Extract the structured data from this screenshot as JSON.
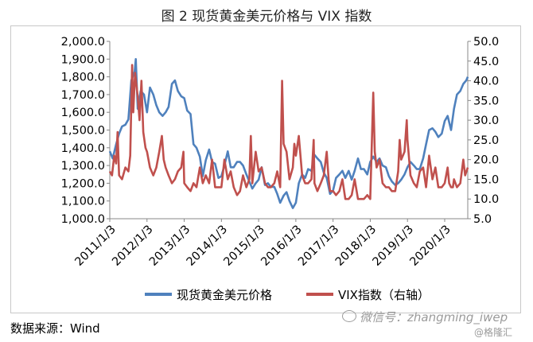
{
  "chart_data": {
    "type": "line",
    "title": "图 2    现货黄金美元价格与 VIX 指数",
    "xlabel": "",
    "ylabel": "",
    "y_left": {
      "range": [
        1000,
        2000
      ],
      "ticks": [
        "1,000.0",
        "1,100.0",
        "1,200.0",
        "1,300.0",
        "1,400.0",
        "1,500.0",
        "1,600.0",
        "1,700.0",
        "1,800.0",
        "1,900.0",
        "2,000.0"
      ]
    },
    "y_right": {
      "range": [
        5,
        50
      ],
      "ticks": [
        "5.0",
        "10.0",
        "15.0",
        "20.0",
        "25.0",
        "30.0",
        "35.0",
        "40.0",
        "45.0",
        "50.0"
      ]
    },
    "x_range": [
      2011.0,
      2020.62
    ],
    "x_ticks": [
      "2011/1/3",
      "2012/1/3",
      "2013/1/3",
      "2014/1/3",
      "2015/1/3",
      "2016/1/3",
      "2017/1/3",
      "2018/1/3",
      "2019/1/3",
      "2020/1/3"
    ],
    "legend_position": "bottom",
    "grid": false,
    "series": [
      {
        "name": "现货黄金美元价格",
        "axis": "left",
        "color": "#4f81bd",
        "points": [
          [
            2011.0,
            1380
          ],
          [
            2011.08,
            1340
          ],
          [
            2011.17,
            1420
          ],
          [
            2011.25,
            1480
          ],
          [
            2011.33,
            1520
          ],
          [
            2011.42,
            1530
          ],
          [
            2011.5,
            1560
          ],
          [
            2011.58,
            1780
          ],
          [
            2011.67,
            1830
          ],
          [
            2011.7,
            1900
          ],
          [
            2011.75,
            1620
          ],
          [
            2011.83,
            1720
          ],
          [
            2011.92,
            1700
          ],
          [
            2012.0,
            1600
          ],
          [
            2012.08,
            1740
          ],
          [
            2012.17,
            1700
          ],
          [
            2012.25,
            1640
          ],
          [
            2012.33,
            1600
          ],
          [
            2012.42,
            1580
          ],
          [
            2012.5,
            1600
          ],
          [
            2012.58,
            1630
          ],
          [
            2012.67,
            1760
          ],
          [
            2012.75,
            1780
          ],
          [
            2012.83,
            1720
          ],
          [
            2012.92,
            1690
          ],
          [
            2013.0,
            1680
          ],
          [
            2013.08,
            1610
          ],
          [
            2013.17,
            1590
          ],
          [
            2013.25,
            1420
          ],
          [
            2013.33,
            1400
          ],
          [
            2013.42,
            1350
          ],
          [
            2013.5,
            1240
          ],
          [
            2013.58,
            1330
          ],
          [
            2013.67,
            1390
          ],
          [
            2013.75,
            1320
          ],
          [
            2013.83,
            1310
          ],
          [
            2013.92,
            1230
          ],
          [
            2014.0,
            1240
          ],
          [
            2014.08,
            1300
          ],
          [
            2014.17,
            1380
          ],
          [
            2014.25,
            1290
          ],
          [
            2014.33,
            1290
          ],
          [
            2014.42,
            1320
          ],
          [
            2014.5,
            1320
          ],
          [
            2014.58,
            1300
          ],
          [
            2014.67,
            1250
          ],
          [
            2014.75,
            1210
          ],
          [
            2014.83,
            1170
          ],
          [
            2014.92,
            1200
          ],
          [
            2015.0,
            1220
          ],
          [
            2015.08,
            1290
          ],
          [
            2015.17,
            1190
          ],
          [
            2015.25,
            1200
          ],
          [
            2015.33,
            1180
          ],
          [
            2015.42,
            1180
          ],
          [
            2015.5,
            1140
          ],
          [
            2015.58,
            1090
          ],
          [
            2015.67,
            1130
          ],
          [
            2015.75,
            1150
          ],
          [
            2015.83,
            1100
          ],
          [
            2015.92,
            1060
          ],
          [
            2016.0,
            1090
          ],
          [
            2016.08,
            1200
          ],
          [
            2016.17,
            1250
          ],
          [
            2016.25,
            1230
          ],
          [
            2016.33,
            1280
          ],
          [
            2016.42,
            1270
          ],
          [
            2016.5,
            1360
          ],
          [
            2016.58,
            1340
          ],
          [
            2016.67,
            1320
          ],
          [
            2016.75,
            1260
          ],
          [
            2016.83,
            1230
          ],
          [
            2016.92,
            1140
          ],
          [
            2017.0,
            1160
          ],
          [
            2017.08,
            1230
          ],
          [
            2017.17,
            1250
          ],
          [
            2017.25,
            1270
          ],
          [
            2017.33,
            1230
          ],
          [
            2017.42,
            1270
          ],
          [
            2017.5,
            1220
          ],
          [
            2017.58,
            1270
          ],
          [
            2017.67,
            1340
          ],
          [
            2017.75,
            1280
          ],
          [
            2017.83,
            1280
          ],
          [
            2017.92,
            1250
          ],
          [
            2018.0,
            1320
          ],
          [
            2018.08,
            1350
          ],
          [
            2018.17,
            1320
          ],
          [
            2018.25,
            1340
          ],
          [
            2018.33,
            1300
          ],
          [
            2018.42,
            1290
          ],
          [
            2018.5,
            1240
          ],
          [
            2018.58,
            1210
          ],
          [
            2018.67,
            1190
          ],
          [
            2018.75,
            1200
          ],
          [
            2018.83,
            1220
          ],
          [
            2018.92,
            1250
          ],
          [
            2019.0,
            1290
          ],
          [
            2019.08,
            1320
          ],
          [
            2019.17,
            1300
          ],
          [
            2019.25,
            1280
          ],
          [
            2019.33,
            1280
          ],
          [
            2019.42,
            1340
          ],
          [
            2019.5,
            1420
          ],
          [
            2019.58,
            1500
          ],
          [
            2019.67,
            1510
          ],
          [
            2019.75,
            1490
          ],
          [
            2019.83,
            1460
          ],
          [
            2019.92,
            1480
          ],
          [
            2020.0,
            1550
          ],
          [
            2020.08,
            1580
          ],
          [
            2020.17,
            1500
          ],
          [
            2020.25,
            1620
          ],
          [
            2020.33,
            1700
          ],
          [
            2020.42,
            1720
          ],
          [
            2020.5,
            1760
          ],
          [
            2020.58,
            1780
          ],
          [
            2020.62,
            1800
          ]
        ]
      },
      {
        "name": "VIX指数（右轴）",
        "axis": "right",
        "color": "#c0504d",
        "points": [
          [
            2011.0,
            17
          ],
          [
            2011.06,
            16
          ],
          [
            2011.12,
            21
          ],
          [
            2011.17,
            19
          ],
          [
            2011.21,
            27
          ],
          [
            2011.25,
            16
          ],
          [
            2011.33,
            15
          ],
          [
            2011.42,
            18
          ],
          [
            2011.5,
            17
          ],
          [
            2011.55,
            21
          ],
          [
            2011.6,
            44
          ],
          [
            2011.63,
            32
          ],
          [
            2011.68,
            42
          ],
          [
            2011.75,
            36
          ],
          [
            2011.8,
            30
          ],
          [
            2011.85,
            40
          ],
          [
            2011.9,
            27
          ],
          [
            2011.96,
            23
          ],
          [
            2012.0,
            22
          ],
          [
            2012.08,
            18
          ],
          [
            2012.17,
            16
          ],
          [
            2012.25,
            18
          ],
          [
            2012.33,
            22
          ],
          [
            2012.4,
            26
          ],
          [
            2012.45,
            20
          ],
          [
            2012.5,
            18
          ],
          [
            2012.58,
            16
          ],
          [
            2012.67,
            14
          ],
          [
            2012.75,
            15
          ],
          [
            2012.83,
            17
          ],
          [
            2012.92,
            18
          ],
          [
            2012.98,
            22
          ],
          [
            2013.0,
            14
          ],
          [
            2013.08,
            13
          ],
          [
            2013.17,
            12
          ],
          [
            2013.25,
            14
          ],
          [
            2013.33,
            13
          ],
          [
            2013.42,
            18
          ],
          [
            2013.5,
            14
          ],
          [
            2013.58,
            16
          ],
          [
            2013.67,
            14
          ],
          [
            2013.75,
            20
          ],
          [
            2013.83,
            13
          ],
          [
            2013.92,
            13
          ],
          [
            2014.0,
            13
          ],
          [
            2014.08,
            20
          ],
          [
            2014.17,
            15
          ],
          [
            2014.25,
            17
          ],
          [
            2014.33,
            13
          ],
          [
            2014.42,
            11
          ],
          [
            2014.5,
            12
          ],
          [
            2014.58,
            16
          ],
          [
            2014.67,
            13
          ],
          [
            2014.75,
            15
          ],
          [
            2014.79,
            26
          ],
          [
            2014.83,
            14
          ],
          [
            2014.92,
            22
          ],
          [
            2015.0,
            17
          ],
          [
            2015.08,
            18
          ],
          [
            2015.17,
            14
          ],
          [
            2015.25,
            13
          ],
          [
            2015.33,
            13
          ],
          [
            2015.42,
            14
          ],
          [
            2015.5,
            17
          ],
          [
            2015.58,
            13
          ],
          [
            2015.63,
            40
          ],
          [
            2015.67,
            24
          ],
          [
            2015.75,
            22
          ],
          [
            2015.83,
            15
          ],
          [
            2015.92,
            18
          ],
          [
            2015.96,
            24
          ],
          [
            2016.0,
            21
          ],
          [
            2016.08,
            26
          ],
          [
            2016.17,
            16
          ],
          [
            2016.25,
            14
          ],
          [
            2016.33,
            14
          ],
          [
            2016.42,
            15
          ],
          [
            2016.48,
            25
          ],
          [
            2016.5,
            14
          ],
          [
            2016.58,
            12
          ],
          [
            2016.67,
            14
          ],
          [
            2016.75,
            16
          ],
          [
            2016.83,
            22
          ],
          [
            2016.88,
            15
          ],
          [
            2016.92,
            12
          ],
          [
            2017.0,
            12
          ],
          [
            2017.08,
            11
          ],
          [
            2017.17,
            12
          ],
          [
            2017.25,
            15
          ],
          [
            2017.33,
            10
          ],
          [
            2017.42,
            10
          ],
          [
            2017.5,
            11
          ],
          [
            2017.58,
            15
          ],
          [
            2017.67,
            10
          ],
          [
            2017.75,
            10
          ],
          [
            2017.83,
            10
          ],
          [
            2017.92,
            11
          ],
          [
            2018.0,
            10
          ],
          [
            2018.08,
            37
          ],
          [
            2018.12,
            22
          ],
          [
            2018.17,
            18
          ],
          [
            2018.25,
            20
          ],
          [
            2018.33,
            14
          ],
          [
            2018.42,
            13
          ],
          [
            2018.5,
            13
          ],
          [
            2018.58,
            12
          ],
          [
            2018.67,
            12
          ],
          [
            2018.75,
            17
          ],
          [
            2018.79,
            25
          ],
          [
            2018.83,
            20
          ],
          [
            2018.92,
            22
          ],
          [
            2018.98,
            30
          ],
          [
            2019.0,
            25
          ],
          [
            2019.08,
            16
          ],
          [
            2019.17,
            14
          ],
          [
            2019.25,
            13
          ],
          [
            2019.33,
            17
          ],
          [
            2019.42,
            18
          ],
          [
            2019.5,
            13
          ],
          [
            2019.58,
            21
          ],
          [
            2019.67,
            15
          ],
          [
            2019.75,
            18
          ],
          [
            2019.83,
            13
          ],
          [
            2019.92,
            13
          ],
          [
            2020.0,
            14
          ],
          [
            2020.08,
            18
          ],
          [
            2020.12,
            14
          ],
          [
            2020.17,
            13
          ],
          [
            2020.22,
            13
          ],
          [
            2020.25,
            15
          ],
          [
            2020.33,
            13
          ],
          [
            2020.42,
            14
          ],
          [
            2020.5,
            20
          ],
          [
            2020.55,
            16
          ],
          [
            2020.62,
            18
          ]
        ]
      }
    ]
  },
  "source": "数据来源：Wind",
  "watermark": "微信号：zhangming_iwep",
  "watermark_sub": "@格隆汇"
}
